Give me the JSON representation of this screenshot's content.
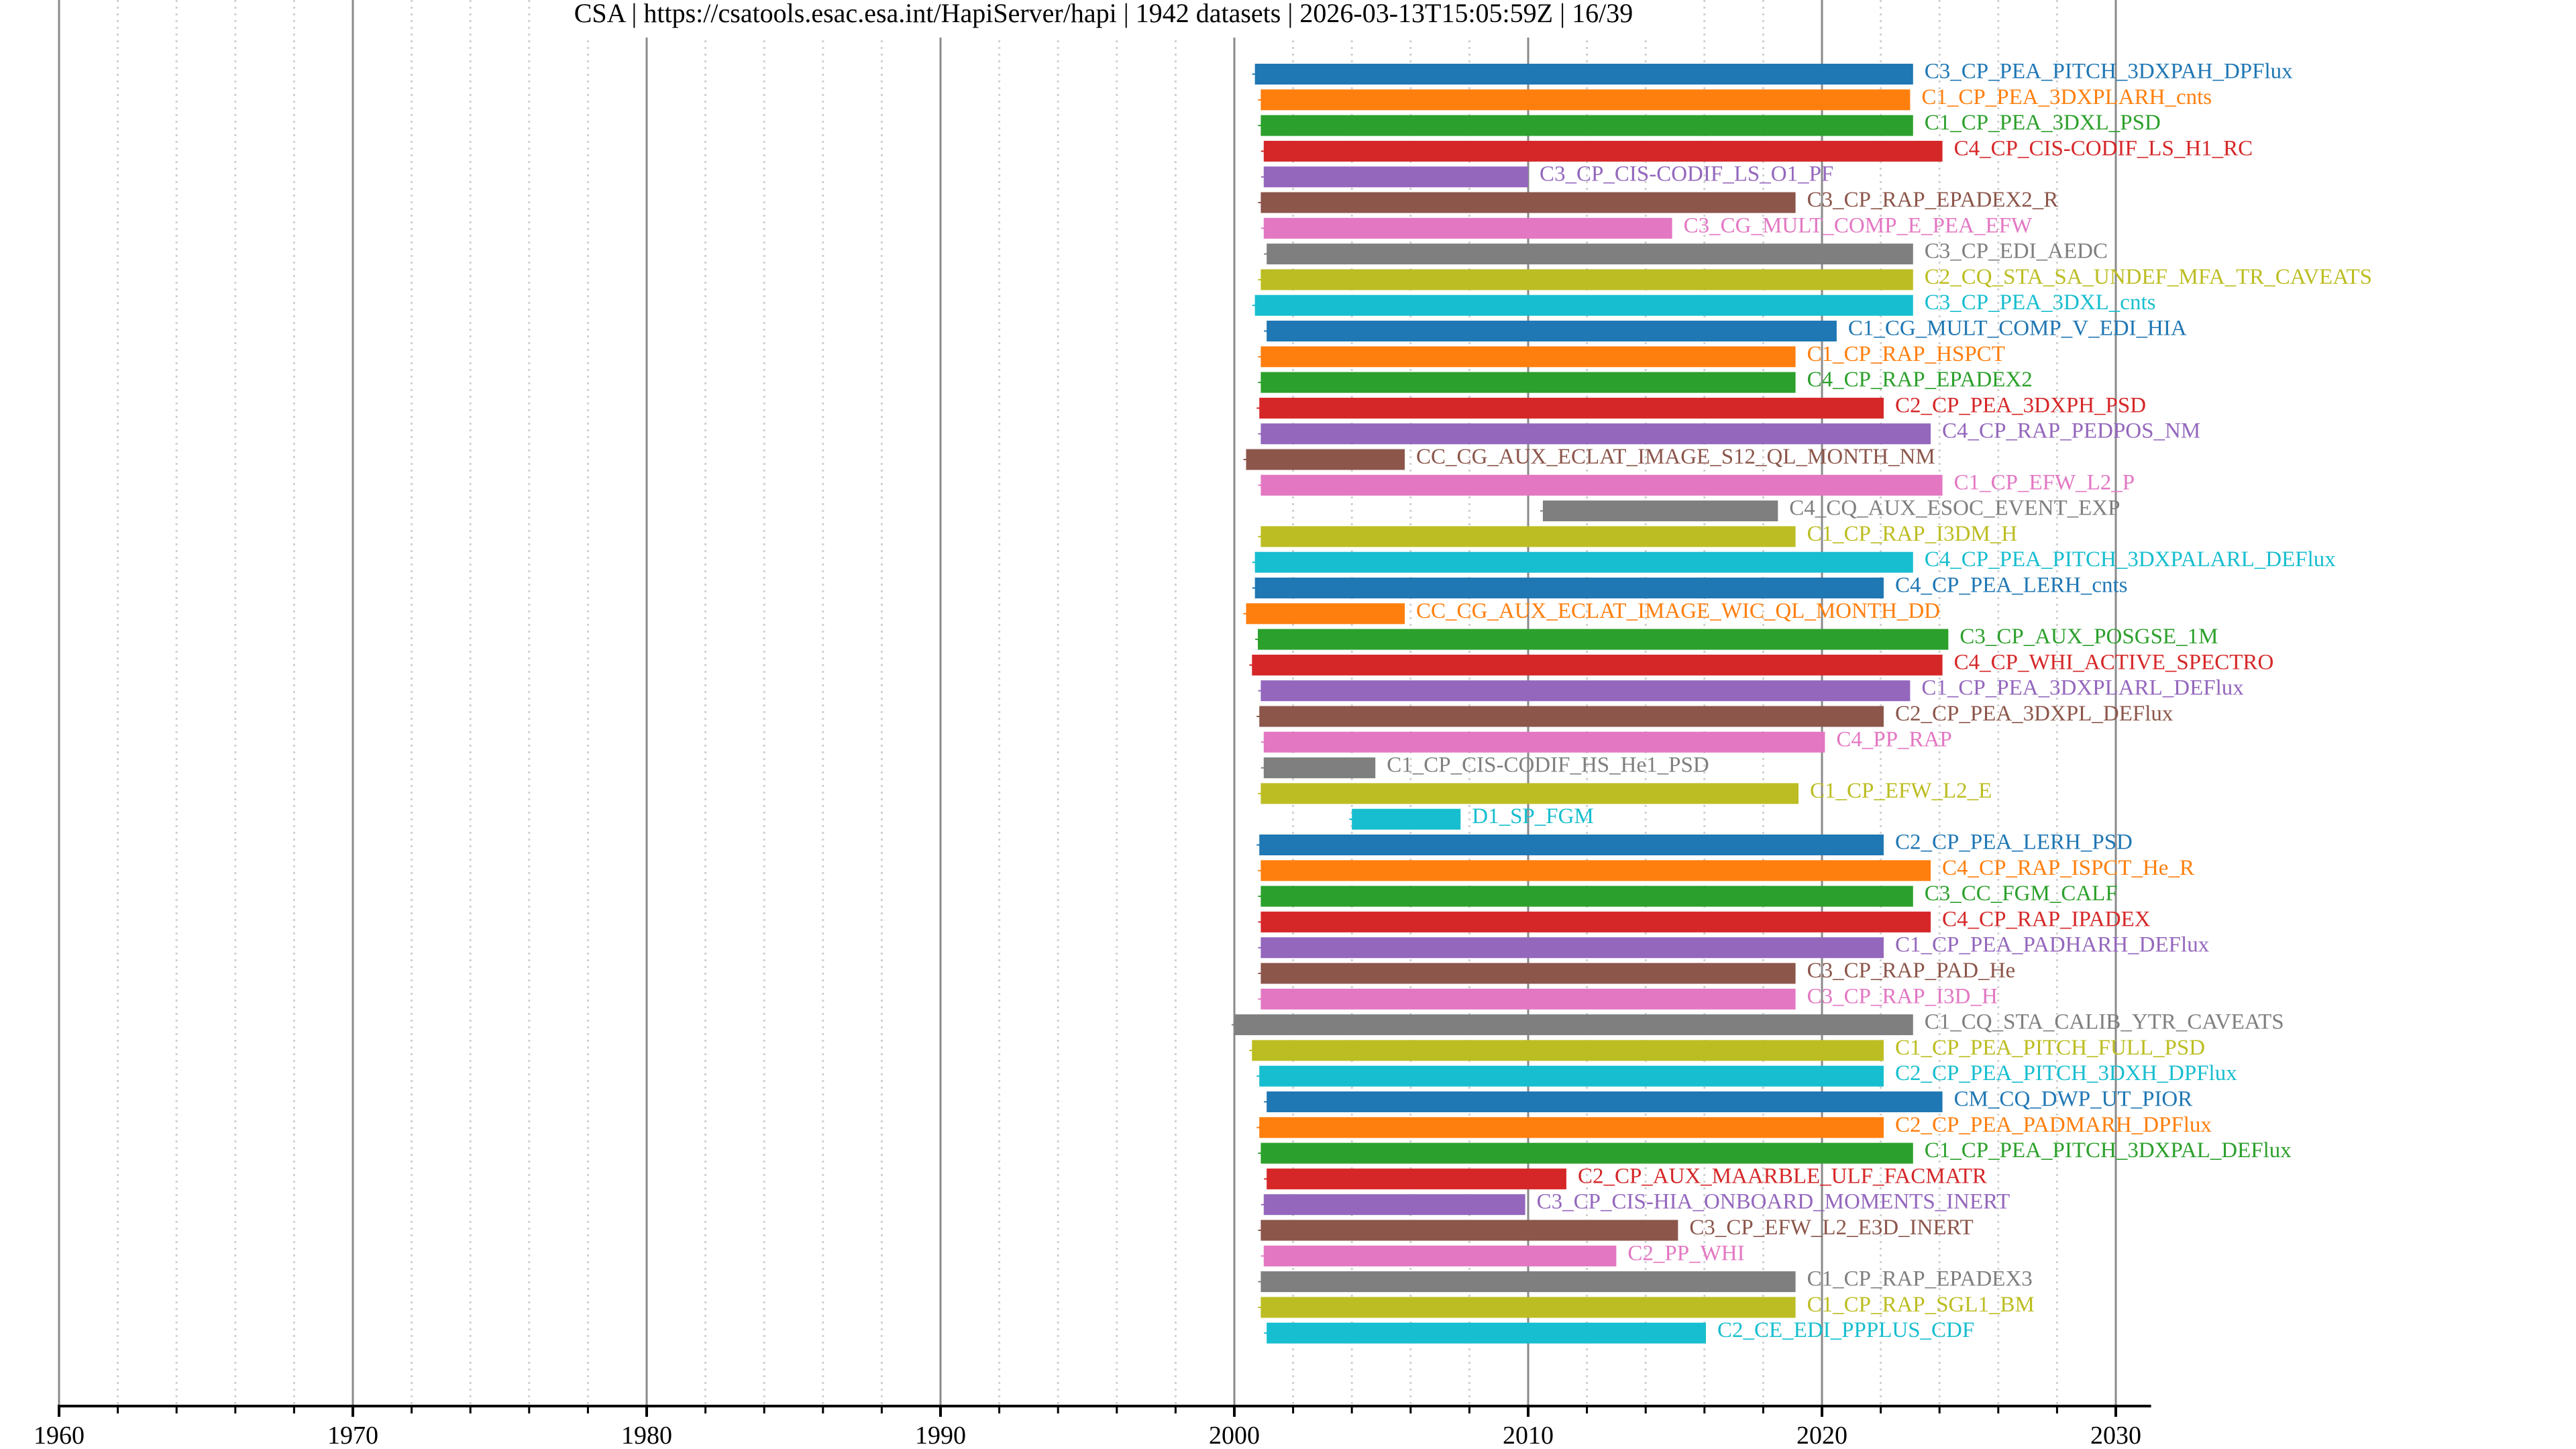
{
  "chart_data": {
    "type": "bar",
    "orientation": "horizontal",
    "chart_kind": "timeline",
    "title": "CSA | https://csatools.esac.esa.int/HapiServer/hapi | 1942 datasets | 2026-03-13T15:05:59Z | 16/39",
    "title_parts": {
      "server_name": "CSA",
      "server_url": "https://csatools.esac.esa.int/HapiServer/hapi",
      "dataset_count": "1942 datasets",
      "timestamp": "2026-03-13T15:05:59Z",
      "page": "16/39"
    },
    "xlabel": "",
    "ylabel": "",
    "xlim": [
      1960,
      2031.2
    ],
    "x_major_ticks": [
      1960,
      1970,
      1980,
      1990,
      2000,
      2010,
      2020,
      2030
    ],
    "x_tick_labels": [
      "1960",
      "1970",
      "1980",
      "1990",
      "2000",
      "2010",
      "2020",
      "2030"
    ],
    "x_minor_tick_step": 2,
    "grid": true,
    "legend": "none (labels at bar ends)",
    "palette": [
      "#1f77b4",
      "#ff7f0e",
      "#2ca02c",
      "#d62728",
      "#9467bd",
      "#8c564b",
      "#e377c2",
      "#7f7f7f",
      "#bcbd22",
      "#17becf"
    ],
    "datasets": [
      {
        "name": "C3_CP_PEA_PITCH_3DXPAH_DPFlux",
        "start": 2000.7,
        "stop": 2023.1
      },
      {
        "name": "C1_CP_PEA_3DXPLARH_cnts",
        "start": 2000.9,
        "stop": 2023.0
      },
      {
        "name": "C1_CP_PEA_3DXL_PSD",
        "start": 2000.9,
        "stop": 2023.1
      },
      {
        "name": "C4_CP_CIS-CODIF_LS_H1_RC",
        "start": 2001.0,
        "stop": 2024.1
      },
      {
        "name": "C3_CP_CIS-CODIF_LS_O1_PF",
        "start": 2001.0,
        "stop": 2010.0
      },
      {
        "name": "C3_CP_RAP_EPADEX2_R",
        "start": 2000.9,
        "stop": 2019.1
      },
      {
        "name": "C3_CG_MULT_COMP_E_PEA_EFW",
        "start": 2001.0,
        "stop": 2014.9
      },
      {
        "name": "C3_CP_EDI_AEDC",
        "start": 2001.1,
        "stop": 2023.1
      },
      {
        "name": "C2_CQ_STA_SA_UNDEF_MFA_TR_CAVEATS",
        "start": 2000.9,
        "stop": 2023.1
      },
      {
        "name": "C3_CP_PEA_3DXL_cnts",
        "start": 2000.7,
        "stop": 2023.1
      },
      {
        "name": "C1_CG_MULT_COMP_V_EDI_HIA",
        "start": 2001.1,
        "stop": 2020.5
      },
      {
        "name": "C1_CP_RAP_HSPCT",
        "start": 2000.9,
        "stop": 2019.1
      },
      {
        "name": "C4_CP_RAP_EPADEX2",
        "start": 2000.9,
        "stop": 2019.1
      },
      {
        "name": "C2_CP_PEA_3DXPH_PSD",
        "start": 2000.85,
        "stop": 2022.1
      },
      {
        "name": "C4_CP_RAP_PEDPOS_NM",
        "start": 2000.9,
        "stop": 2023.7
      },
      {
        "name": "CC_CG_AUX_ECLAT_IMAGE_S12_QL_MONTH_NM",
        "start": 2000.4,
        "stop": 2005.8
      },
      {
        "name": "C1_CP_EFW_L2_P",
        "start": 2000.9,
        "stop": 2024.1
      },
      {
        "name": "C4_CQ_AUX_ESOC_EVENT_EXP",
        "start": 2010.5,
        "stop": 2018.5
      },
      {
        "name": "C1_CP_RAP_I3DM_H",
        "start": 2000.9,
        "stop": 2019.1
      },
      {
        "name": "C4_CP_PEA_PITCH_3DXPALARL_DEFlux",
        "start": 2000.7,
        "stop": 2023.1
      },
      {
        "name": "C4_CP_PEA_LERH_cnts",
        "start": 2000.7,
        "stop": 2022.1
      },
      {
        "name": "CC_CG_AUX_ECLAT_IMAGE_WIC_QL_MONTH_DD",
        "start": 2000.4,
        "stop": 2005.8
      },
      {
        "name": "C3_CP_AUX_POSGSE_1M",
        "start": 2000.8,
        "stop": 2024.3
      },
      {
        "name": "C4_CP_WHI_ACTIVE_SPECTRO",
        "start": 2000.6,
        "stop": 2024.1
      },
      {
        "name": "C1_CP_PEA_3DXPLARL_DEFlux",
        "start": 2000.9,
        "stop": 2023.0
      },
      {
        "name": "C2_CP_PEA_3DXPL_DEFlux",
        "start": 2000.85,
        "stop": 2022.1
      },
      {
        "name": "C4_PP_RAP",
        "start": 2001.0,
        "stop": 2020.1
      },
      {
        "name": "C1_CP_CIS-CODIF_HS_He1_PSD",
        "start": 2001.0,
        "stop": 2004.8
      },
      {
        "name": "C1_CP_EFW_L2_E",
        "start": 2000.9,
        "stop": 2019.2
      },
      {
        "name": "D1_SP_FGM",
        "start": 2004.0,
        "stop": 2007.7
      },
      {
        "name": "C2_CP_PEA_LERH_PSD",
        "start": 2000.85,
        "stop": 2022.1
      },
      {
        "name": "C4_CP_RAP_ISPCT_He_R",
        "start": 2000.9,
        "stop": 2023.7
      },
      {
        "name": "C3_CC_FGM_CALF",
        "start": 2000.9,
        "stop": 2023.1
      },
      {
        "name": "C4_CP_RAP_IPADEX",
        "start": 2000.9,
        "stop": 2023.7
      },
      {
        "name": "C1_CP_PEA_PADHARH_DEFlux",
        "start": 2000.9,
        "stop": 2022.1
      },
      {
        "name": "C3_CP_RAP_PAD_He",
        "start": 2000.9,
        "stop": 2019.1
      },
      {
        "name": "C3_CP_RAP_I3D_H",
        "start": 2000.9,
        "stop": 2019.1
      },
      {
        "name": "C1_CQ_STA_CALIB_YTR_CAVEATS",
        "start": 2000.0,
        "stop": 2023.1
      },
      {
        "name": "C1_CP_PEA_PITCH_FULL_PSD",
        "start": 2000.6,
        "stop": 2022.1
      },
      {
        "name": "C2_CP_PEA_PITCH_3DXH_DPFlux",
        "start": 2000.85,
        "stop": 2022.1
      },
      {
        "name": "CM_CQ_DWP_UT_PIOR",
        "start": 2001.1,
        "stop": 2024.1
      },
      {
        "name": "C2_CP_PEA_PADMARH_DPFlux",
        "start": 2000.85,
        "stop": 2022.1
      },
      {
        "name": "C1_CP_PEA_PITCH_3DXPAL_DEFlux",
        "start": 2000.9,
        "stop": 2023.1
      },
      {
        "name": "C2_CP_AUX_MAARBLE_ULF_FACMATR",
        "start": 2001.1,
        "stop": 2011.3
      },
      {
        "name": "C3_CP_CIS-HIA_ONBOARD_MOMENTS_INERT",
        "start": 2001.0,
        "stop": 2009.9
      },
      {
        "name": "C3_CP_EFW_L2_E3D_INERT",
        "start": 2000.9,
        "stop": 2015.1
      },
      {
        "name": "C2_PP_WHI",
        "start": 2001.0,
        "stop": 2013.0
      },
      {
        "name": "C1_CP_RAP_EPADEX3",
        "start": 2000.9,
        "stop": 2019.1
      },
      {
        "name": "C1_CP_RAP_SGL1_BM",
        "start": 2000.9,
        "stop": 2019.1
      },
      {
        "name": "C2_CE_EDI_PPPLUS_CDF",
        "start": 2001.1,
        "stop": 2016.05
      }
    ]
  }
}
